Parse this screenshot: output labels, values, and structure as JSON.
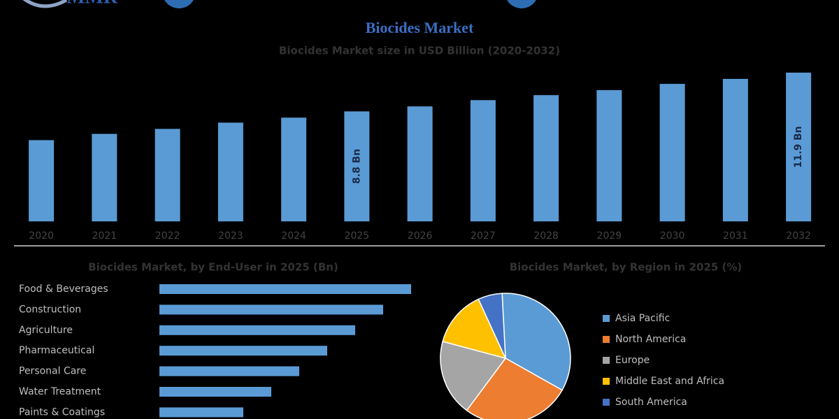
{
  "header": {
    "logo": "MMR",
    "title": "Biocides Market"
  },
  "chart_data": [
    {
      "type": "bar",
      "title": "Biocides Market size in USD Billion (2020-2032)",
      "categories": [
        "2020",
        "2021",
        "2022",
        "2023",
        "2024",
        "2025",
        "2026",
        "2027",
        "2028",
        "2029",
        "2030",
        "2031",
        "2032"
      ],
      "values": [
        6.5,
        7.0,
        7.4,
        7.9,
        8.3,
        8.8,
        9.2,
        9.7,
        10.1,
        10.5,
        11.0,
        11.4,
        11.9
      ],
      "value_labels": [
        null,
        null,
        null,
        null,
        null,
        "8.8 Bn",
        null,
        null,
        null,
        null,
        null,
        null,
        "11.9 Bn"
      ],
      "color": "#5b9bd5"
    },
    {
      "type": "hbar",
      "title": "Biocides Market, by End-User in 2025 (Bn)",
      "categories": [
        "Food & Beverages",
        "Construction",
        "Agriculture",
        "Pharmaceutical",
        "Personal Care",
        "Water Treatment",
        "Paints & Coatings"
      ],
      "values": [
        1.8,
        1.6,
        1.4,
        1.2,
        1.0,
        0.8,
        0.6
      ],
      "color": "#5b9bd5"
    },
    {
      "type": "pie",
      "title": "Biocides Market, by Region in 2025 (%)",
      "categories": [
        "Asia Pacific",
        "North America",
        "Europe",
        "Middle East and Africa",
        "South America"
      ],
      "values": [
        34,
        27,
        19,
        14,
        6
      ],
      "colors": [
        "#5b9bd5",
        "#ed7d31",
        "#a5a5a5",
        "#ffc000",
        "#4472c4"
      ]
    }
  ]
}
